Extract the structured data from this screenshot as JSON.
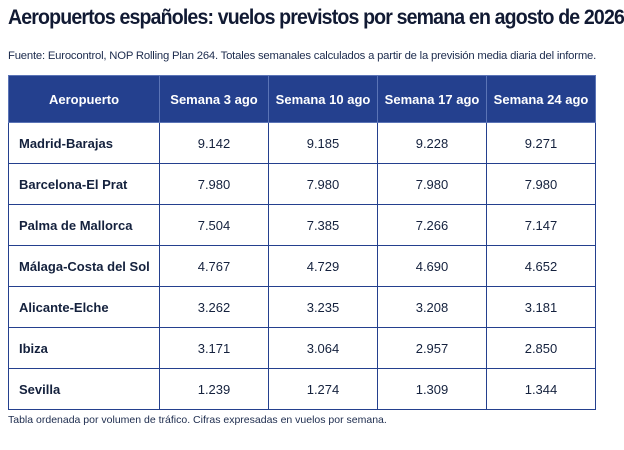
{
  "title": "Aeropuertos españoles: vuelos previstos por semana en agosto de 2026",
  "subtitle": "Fuente: Eurocontrol, NOP Rolling Plan 264. Totales semanales calculados a partir de la previsión media diaria del informe.",
  "table": {
    "header": [
      "Aeropuerto",
      "Semana 3 ago",
      "Semana 10 ago",
      "Semana 17 ago",
      "Semana 24 ago"
    ],
    "rows": [
      [
        "Madrid-Barajas",
        "9.142",
        "9.185",
        "9.228",
        "9.271"
      ],
      [
        "Barcelona-El Prat",
        "7.980",
        "7.980",
        "7.980",
        "7.980"
      ],
      [
        "Palma de Mallorca",
        "7.504",
        "7.385",
        "7.266",
        "7.147"
      ],
      [
        "Málaga-Costa del Sol",
        "4.767",
        "4.729",
        "4.690",
        "4.652"
      ],
      [
        "Alicante-Elche",
        "3.262",
        "3.235",
        "3.208",
        "3.181"
      ],
      [
        "Ibiza",
        "3.171",
        "3.064",
        "2.957",
        "2.850"
      ],
      [
        "Sevilla",
        "1.239",
        "1.274",
        "1.309",
        "1.344"
      ]
    ]
  },
  "footnote": "Tabla ordenada por volumen de tráfico. Cifras expresadas en vuelos por semana."
}
